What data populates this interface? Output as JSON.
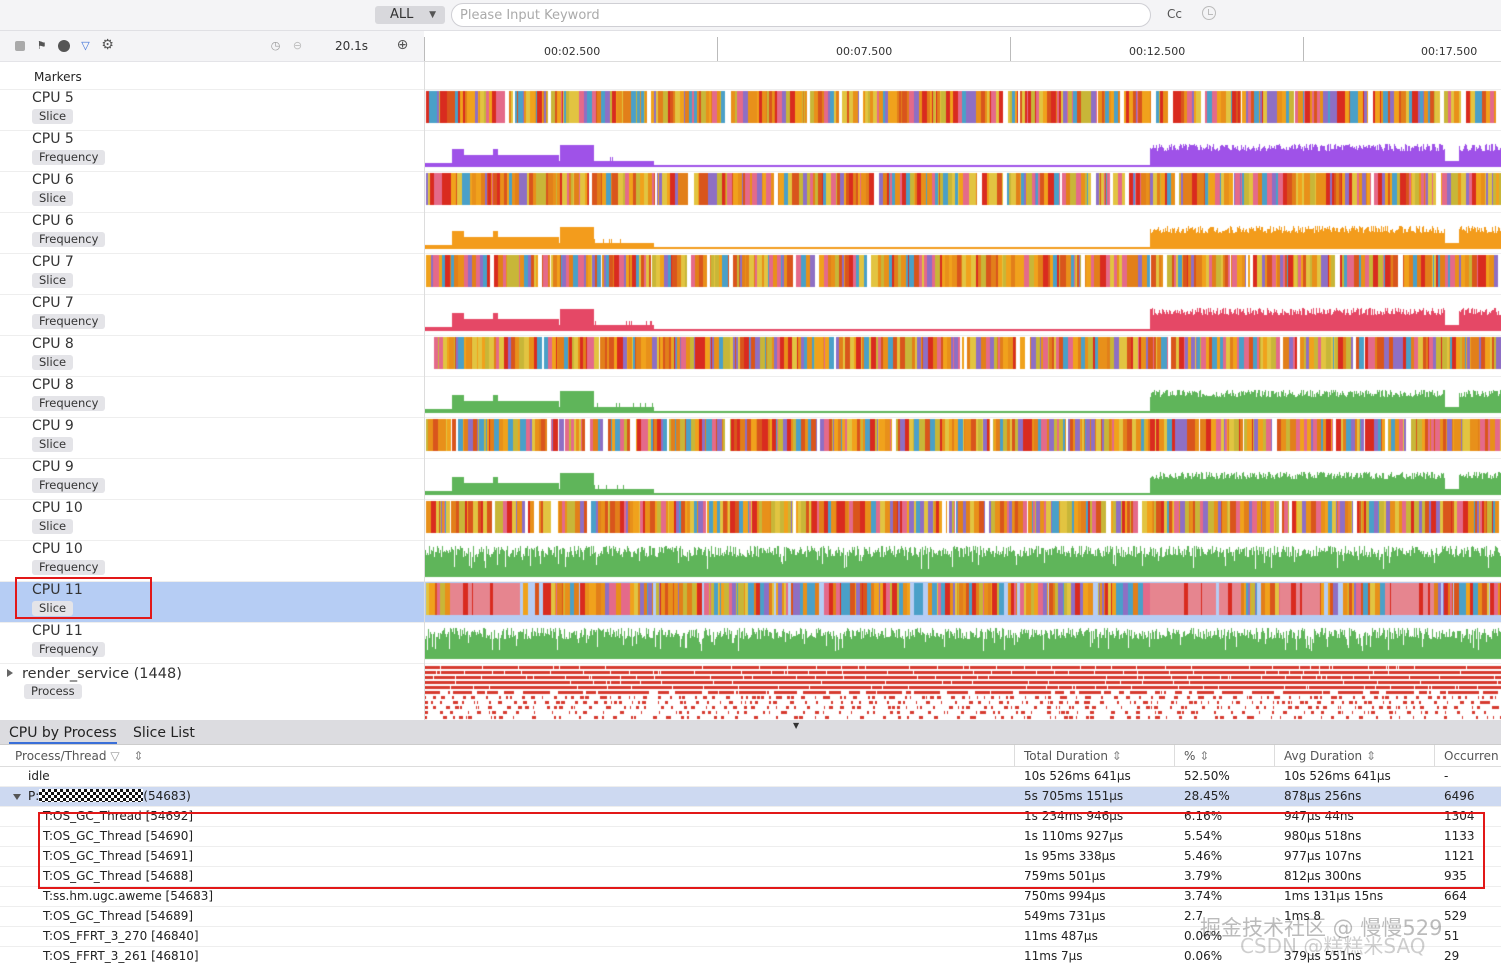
{
  "search": {
    "scope": "ALL",
    "placeholder": "Please Input Keyword",
    "case_label": "Cc"
  },
  "toolbar": {
    "icons": [
      "stop-icon",
      "flag-icon",
      "record-icon",
      "filter-icon",
      "settings-icon",
      "clock-icon",
      "minus-circle-icon",
      "plus-circle-icon"
    ],
    "zoom": "20.1s"
  },
  "ruler": {
    "ticks": [
      "00:02.500",
      "00:07.500",
      "00:12.500",
      "00:17.500"
    ]
  },
  "markers_label": "Markers",
  "tracks": [
    {
      "name": "CPU 5",
      "tag": "Slice",
      "kind": "slice"
    },
    {
      "name": "CPU 5",
      "tag": "Frequency",
      "kind": "freq",
      "color": "#9f52e8"
    },
    {
      "name": "CPU 6",
      "tag": "Slice",
      "kind": "slice"
    },
    {
      "name": "CPU 6",
      "tag": "Frequency",
      "kind": "freq",
      "color": "#f39c1c"
    },
    {
      "name": "CPU 7",
      "tag": "Slice",
      "kind": "slice"
    },
    {
      "name": "CPU 7",
      "tag": "Frequency",
      "kind": "freq",
      "color": "#e54866"
    },
    {
      "name": "CPU 8",
      "tag": "Slice",
      "kind": "slice"
    },
    {
      "name": "CPU 8",
      "tag": "Frequency",
      "kind": "freq",
      "color": "#5fb55a"
    },
    {
      "name": "CPU 9",
      "tag": "Slice",
      "kind": "slice"
    },
    {
      "name": "CPU 9",
      "tag": "Frequency",
      "kind": "freq",
      "color": "#5fb55a"
    },
    {
      "name": "CPU 10",
      "tag": "Slice",
      "kind": "slice"
    },
    {
      "name": "CPU 10",
      "tag": "Frequency",
      "kind": "dense",
      "color": "#5fb55a"
    },
    {
      "name": "CPU 11",
      "tag": "Slice",
      "kind": "slice11",
      "selected": true
    },
    {
      "name": "CPU 11",
      "tag": "Frequency",
      "kind": "dense",
      "color": "#5fb55a"
    },
    {
      "name": "render_service (1448)",
      "tag": "Process",
      "kind": "process"
    }
  ],
  "bottom_tabs": [
    "CPU by Process",
    "Slice List"
  ],
  "table": {
    "columns": [
      "Process/Thread",
      "Total Duration",
      "%",
      "Avg Duration",
      "Occurren"
    ],
    "rows": [
      {
        "name": "idle",
        "total": "10s 526ms 641μs",
        "pct": "52.50%",
        "avg": "10s 526ms 641μs",
        "occ": "-"
      },
      {
        "name_prefix": "P:",
        "name_suffix": "(54683)",
        "total": "5s 705ms 151μs",
        "pct": "28.45%",
        "avg": "878μs 256ns",
        "occ": "6496"
      },
      {
        "name": "T:OS_GC_Thread [54692]",
        "total": "1s 234ms 946μs",
        "pct": "6.16%",
        "avg": "947μs 44ns",
        "occ": "1304"
      },
      {
        "name": "T:OS_GC_Thread [54690]",
        "total": "1s 110ms 927μs",
        "pct": "5.54%",
        "avg": "980μs 518ns",
        "occ": "1133"
      },
      {
        "name": "T:OS_GC_Thread [54691]",
        "total": "1s 95ms 338μs",
        "pct": "5.46%",
        "avg": "977μs 107ns",
        "occ": "1121"
      },
      {
        "name": "T:OS_GC_Thread [54688]",
        "total": "759ms 501μs",
        "pct": "3.79%",
        "avg": "812μs 300ns",
        "occ": "935"
      },
      {
        "name": "T:ss.hm.ugc.aweme [54683]",
        "total": "750ms 994μs",
        "pct": "3.74%",
        "avg": "1ms 131μs 15ns",
        "occ": "664"
      },
      {
        "name": "T:OS_GC_Thread [54689]",
        "total": "549ms 731μs",
        "pct": "2.7",
        "avg": "1ms 8",
        "occ": "529"
      },
      {
        "name": "T:OS_FFRT_3_270 [46840]",
        "total": "11ms 487μs",
        "pct": "0.06%",
        "avg": "",
        "occ": "51"
      },
      {
        "name": "T:OS_FFRT_3_261 [46810]",
        "total": "11ms 7μs",
        "pct": "0.06%",
        "avg": "379μs 551ns",
        "occ": "29"
      }
    ]
  },
  "watermark": "掘金技术社区 @ 慢慢529",
  "watermark2": "CSDN @糕糕米SAQ",
  "colors": {
    "selection_outline": "#e21818",
    "selected_row": "#b6cdf4",
    "slice_palette": [
      "#e8901a",
      "#d92b1f",
      "#f0a21c",
      "#e27f1a",
      "#c8b638",
      "#4aa0c8",
      "#e2c441",
      "#8e6fc4",
      "#e46a8a",
      "#d9551c"
    ],
    "process_red": "#d63b30"
  }
}
